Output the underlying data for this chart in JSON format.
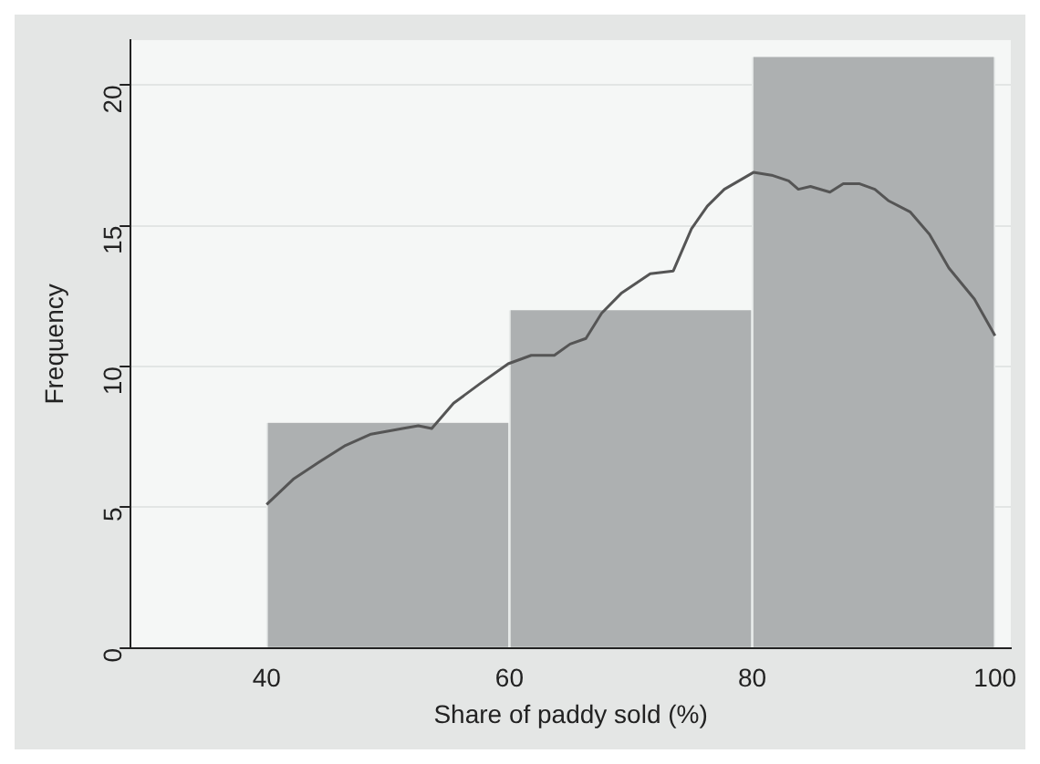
{
  "chart_data": {
    "type": "histogram",
    "xlabel": "Share of paddy sold (%)",
    "ylabel": "Frequency",
    "bins": [
      40,
      60,
      80,
      100
    ],
    "values": [
      8,
      12,
      21
    ],
    "color": "#adb0b1",
    "series": [
      {
        "type": "line",
        "color": "#555555",
        "x": [
          40,
          42.2,
          44.3,
          46.5,
          48.6,
          51.2,
          52.5,
          53.6,
          55.4,
          57.6,
          59.9,
          61.8,
          63.7,
          65.0,
          66.3,
          67.6,
          69.2,
          71.6,
          73.5,
          75.0,
          76.3,
          77.7,
          80.1,
          81.6,
          83.0,
          83.8,
          84.8,
          86.4,
          87.5,
          88.8,
          90.1,
          91.2,
          93.0,
          94.6,
          96.2,
          98.3,
          100
        ],
        "values": [
          5.1,
          6.0,
          6.6,
          7.2,
          7.6,
          7.8,
          7.9,
          7.8,
          8.7,
          9.4,
          10.1,
          10.4,
          10.4,
          10.8,
          11.0,
          11.9,
          12.6,
          13.3,
          13.4,
          14.9,
          15.7,
          16.3,
          16.9,
          16.8,
          16.6,
          16.3,
          16.4,
          16.2,
          16.5,
          16.5,
          16.3,
          15.9,
          15.5,
          14.7,
          13.5,
          12.4,
          11.1
        ]
      }
    ],
    "xlim": [
      28.8,
      101.3
    ],
    "ylim": [
      0,
      21.6
    ],
    "xticks": [
      40,
      60,
      80,
      100
    ],
    "yticks": [
      0,
      5,
      10,
      15,
      20
    ],
    "grid": "y",
    "marker": "none",
    "line_style": "solid"
  }
}
